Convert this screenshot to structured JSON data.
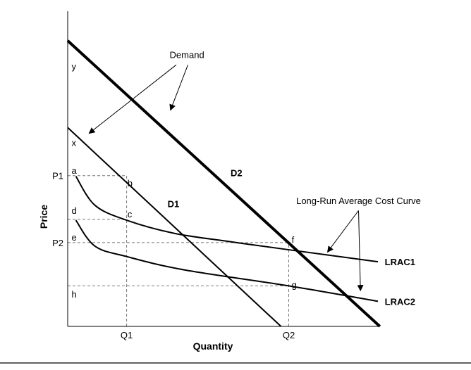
{
  "chart_data": {
    "type": "line",
    "title": "",
    "xlabel": "Quantity",
    "ylabel": "Price",
    "axis_ticks": {
      "x": [
        {
          "label": "Q1",
          "value": 3.04
        },
        {
          "label": "Q2",
          "value": 11.4
        }
      ],
      "y": [
        {
          "label": "P1",
          "value": 7.81
        },
        {
          "label": "P2",
          "value": 4.34
        }
      ]
    },
    "xlim": [
      0,
      16
    ],
    "ylim": [
      0,
      16.4
    ],
    "series": [
      {
        "name": "D2",
        "style": "thick",
        "color": "#000000",
        "points": [
          [
            0,
            14.8
          ],
          [
            16.1,
            0
          ]
        ]
      },
      {
        "name": "D1",
        "style": "medium",
        "color": "#000000",
        "points": [
          [
            0,
            10.3
          ],
          [
            11.0,
            0
          ]
        ]
      },
      {
        "name": "LRAC1",
        "style": "medium",
        "color": "#000000",
        "points": [
          [
            0.42,
            7.78
          ],
          [
            1.4,
            6.28
          ],
          [
            3.04,
            5.5
          ],
          [
            5.5,
            4.82
          ],
          [
            8.3,
            4.4
          ],
          [
            11.4,
            3.97
          ],
          [
            16.0,
            3.35
          ]
        ]
      },
      {
        "name": "LRAC2",
        "style": "medium",
        "color": "#000000",
        "points": [
          [
            0.42,
            5.5
          ],
          [
            1.4,
            4.16
          ],
          [
            3.04,
            3.62
          ],
          [
            6.0,
            2.93
          ],
          [
            11.4,
            2.1
          ],
          [
            16.0,
            1.3
          ]
        ]
      }
    ],
    "points": [
      {
        "label": "y",
        "x": 0.2,
        "y": 13.3
      },
      {
        "label": "x",
        "x": 0.2,
        "y": 9.35
      },
      {
        "label": "a",
        "x": 0.2,
        "y": 7.9
      },
      {
        "label": "b",
        "x": 3.08,
        "y": 7.25
      },
      {
        "label": "c",
        "x": 3.08,
        "y": 5.65
      },
      {
        "label": "d",
        "x": 0.2,
        "y": 5.84
      },
      {
        "label": "D1",
        "x": 5.15,
        "y": 6.17
      },
      {
        "label": "D2",
        "x": 8.4,
        "y": 7.78
      },
      {
        "label": "e",
        "x": 0.2,
        "y": 4.45
      },
      {
        "label": "f",
        "x": 11.55,
        "y": 4.32
      },
      {
        "label": "g",
        "x": 11.55,
        "y": 1.98
      },
      {
        "label": "h",
        "x": 0.2,
        "y": 1.5
      }
    ],
    "guide_lines": [
      {
        "from": [
          0,
          7.81
        ],
        "to": [
          3.04,
          7.81
        ]
      },
      {
        "from": [
          0,
          5.55
        ],
        "to": [
          3.04,
          5.55
        ]
      },
      {
        "from": [
          0,
          4.34
        ],
        "to": [
          11.4,
          4.34
        ]
      },
      {
        "from": [
          0,
          2.1
        ],
        "to": [
          11.4,
          2.1
        ]
      },
      {
        "from": [
          3.04,
          0
        ],
        "to": [
          3.04,
          7.81
        ]
      },
      {
        "from": [
          11.4,
          0
        ],
        "to": [
          11.4,
          4.34
        ]
      }
    ],
    "annotations": [
      {
        "text": "Demand",
        "x": 6.15,
        "y": 13.9,
        "arrows": [
          {
            "from": [
              5.6,
              13.55
            ],
            "to": [
              1.1,
              10.0
            ]
          },
          {
            "from": [
              6.2,
              13.55
            ],
            "to": [
              5.3,
              11.2
            ]
          }
        ]
      },
      {
        "text": "Long-Run Average Cost Curve",
        "x": 15.0,
        "y": 6.35,
        "arrows": [
          {
            "from": [
              15.0,
              6.0
            ],
            "to": [
              13.4,
              3.85
            ]
          },
          {
            "from": [
              15.0,
              6.0
            ],
            "to": [
              15.1,
              1.85
            ]
          }
        ]
      }
    ],
    "end_labels": [
      {
        "text": "LRAC1",
        "x": 16.35,
        "y": 3.35
      },
      {
        "text": "LRAC2",
        "x": 16.35,
        "y": 1.3
      }
    ],
    "grid": false,
    "legend": "none"
  }
}
